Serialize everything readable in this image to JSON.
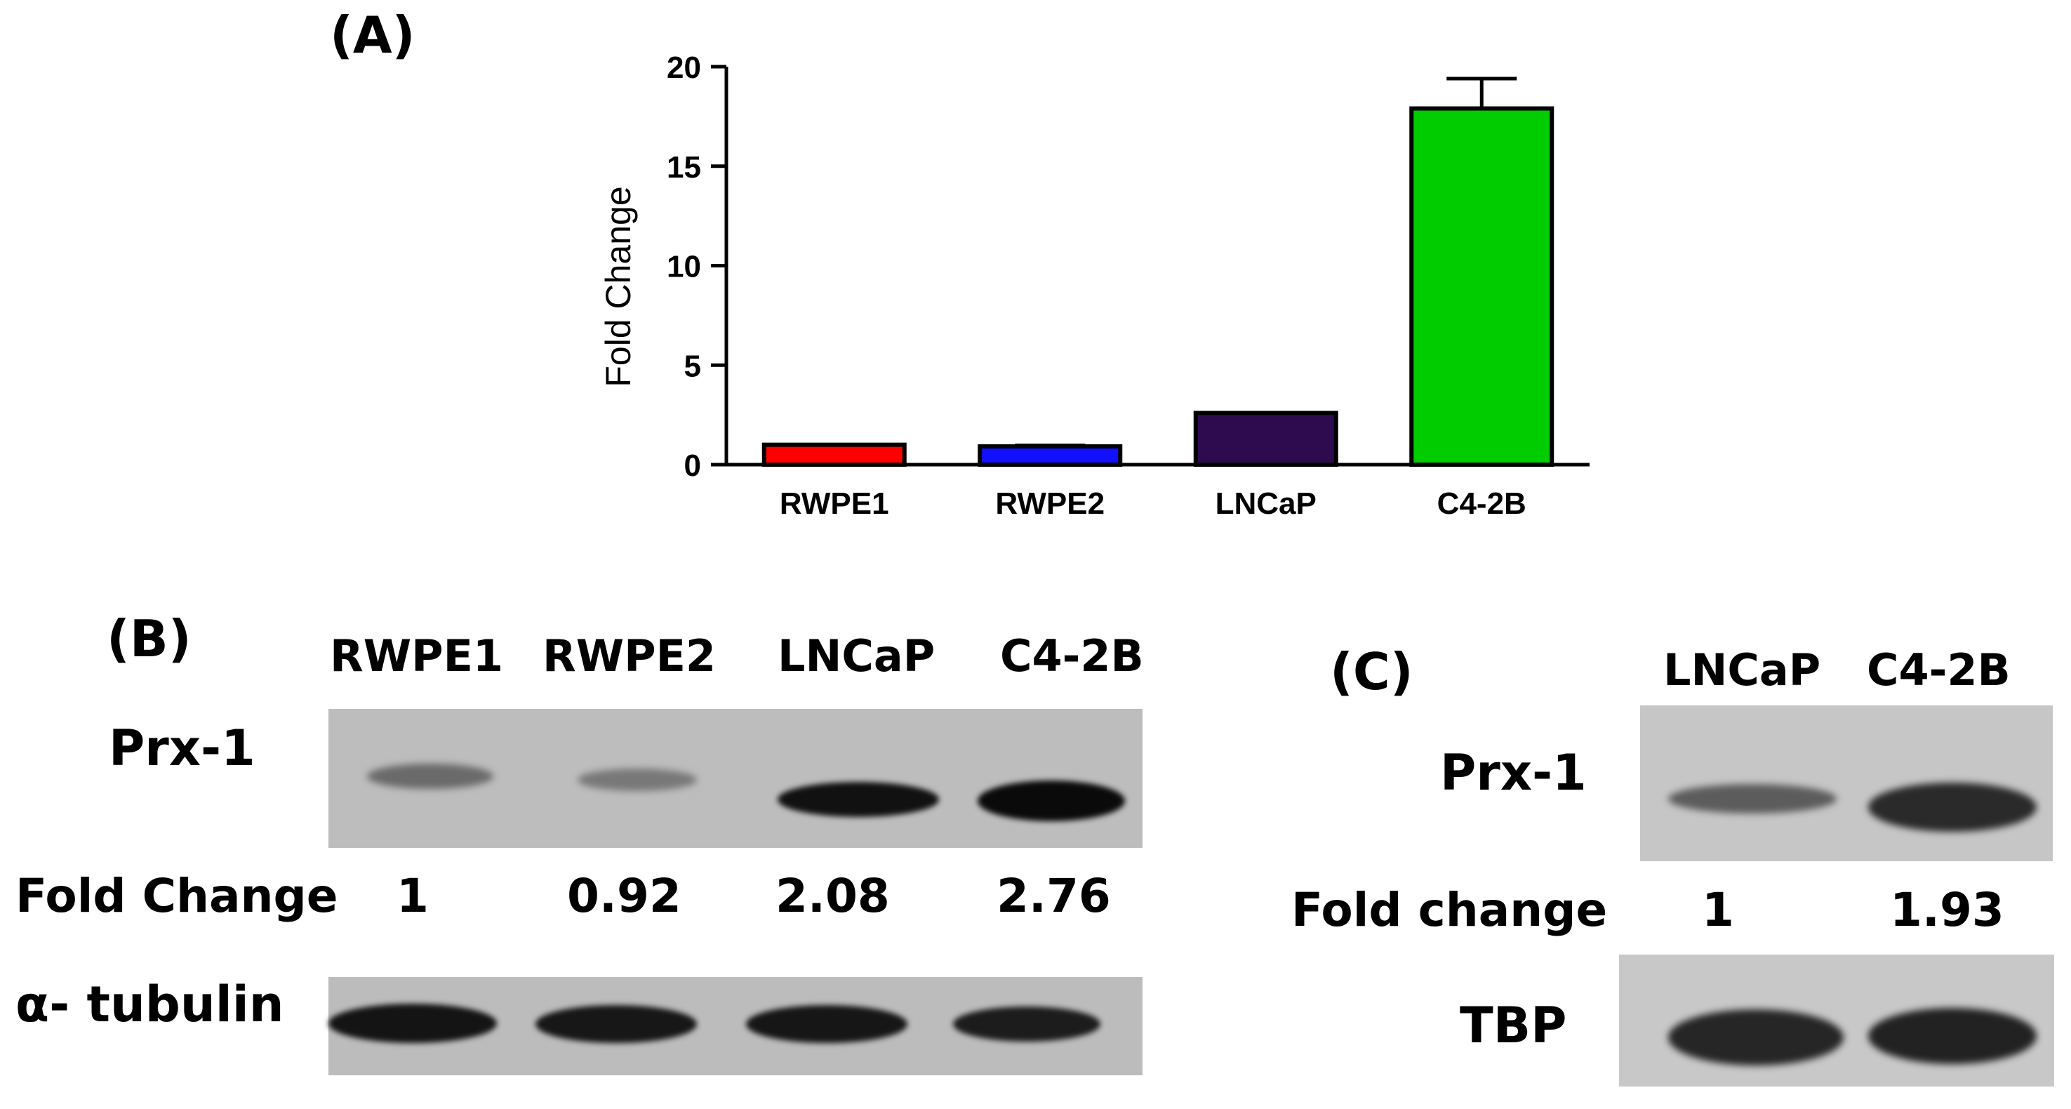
{
  "panels": {
    "a": {
      "label": "(A)"
    },
    "b": {
      "label": "(B)"
    },
    "c": {
      "label": "(C)"
    }
  },
  "chart_data": {
    "type": "bar",
    "categories": [
      "RWPE1",
      "RWPE2",
      "LNCaP",
      "C4-2B"
    ],
    "values": [
      1.0,
      0.92,
      2.6,
      17.9
    ],
    "error_upper": [
      0,
      0.05,
      0,
      1.5
    ],
    "colors": [
      "#ff0000",
      "#1111ff",
      "#2e0a4f",
      "#00cc00"
    ],
    "ylabel": "Fold Change",
    "ylim": [
      0,
      20
    ],
    "yticks": [
      0,
      5,
      10,
      15,
      20
    ],
    "grid": false
  },
  "blot_b": {
    "lanes": [
      "RWPE1",
      "RWPE2",
      "LNCaP",
      "C4-2B"
    ],
    "prx_label": "Prx-1",
    "fold_label": "Fold Change",
    "fold_values": [
      "1",
      "0.92",
      "2.08",
      "2.76"
    ],
    "tubulin_label": "α- tubulin"
  },
  "blot_c": {
    "lanes": [
      "LNCaP",
      "C4-2B"
    ],
    "prx_label": "Prx-1",
    "fold_label": "Fold change",
    "fold_values": [
      "1",
      "1.93"
    ],
    "tbp_label": "TBP"
  }
}
